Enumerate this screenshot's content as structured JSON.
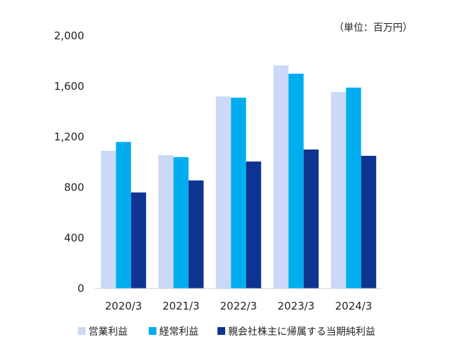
{
  "chart_data": {
    "type": "bar",
    "unit_label": "（単位：百万円）",
    "categories": [
      "2020/3",
      "2021/3",
      "2022/3",
      "2023/3",
      "2024/3"
    ],
    "series": [
      {
        "name": "営業利益",
        "color": "#ccd8f7",
        "values": [
          1090,
          1055,
          1520,
          1765,
          1555
        ]
      },
      {
        "name": "経常利益",
        "color": "#00aeef",
        "values": [
          1160,
          1040,
          1510,
          1700,
          1590
        ]
      },
      {
        "name": "親会社株主に帰属する当期純利益",
        "color": "#0d3490",
        "values": [
          760,
          855,
          1005,
          1100,
          1050
        ]
      }
    ],
    "yticks": [
      "0",
      "400",
      "800",
      "1,200",
      "1,600",
      "2,000"
    ],
    "ylim": [
      0,
      2000
    ],
    "grid": false,
    "legend_position": "bottom"
  }
}
